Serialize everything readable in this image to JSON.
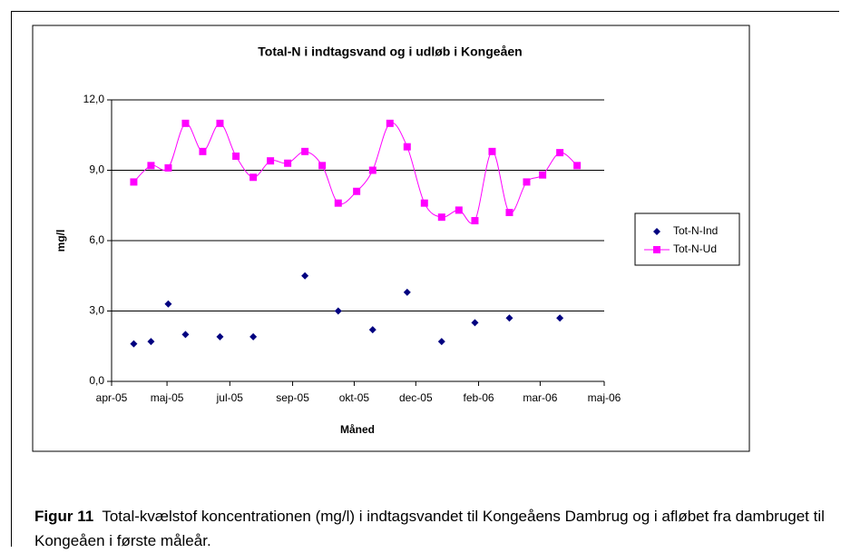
{
  "chart_data": {
    "type": "scatter-line",
    "title": "Total-N i indtagsvand og i udløb i Kongeåen",
    "xlabel": "Måned",
    "ylabel": "mg/l",
    "xlim": [
      0,
      400
    ],
    "xticks": [
      {
        "value": 0,
        "label": "apr-05"
      },
      {
        "value": 45,
        "label": "maj-05"
      },
      {
        "value": 96,
        "label": "jul-05"
      },
      {
        "value": 147,
        "label": "sep-05"
      },
      {
        "value": 197,
        "label": "okt-05"
      },
      {
        "value": 247,
        "label": "dec-05"
      },
      {
        "value": 298,
        "label": "feb-06"
      },
      {
        "value": 348,
        "label": "mar-06"
      },
      {
        "value": 400,
        "label": "maj-06"
      }
    ],
    "ylim": [
      0,
      12
    ],
    "yticks": [
      {
        "value": 0,
        "label": "0,0"
      },
      {
        "value": 3,
        "label": "3,0"
      },
      {
        "value": 6,
        "label": "6,0"
      },
      {
        "value": 9,
        "label": "9,0"
      },
      {
        "value": 12,
        "label": "12,0"
      }
    ],
    "grid": true,
    "legend": "right",
    "series": [
      {
        "name": "Tot-N-Ind",
        "color": "#000080",
        "marker": "diamond",
        "line": false,
        "x": [
          18,
          32,
          46,
          60,
          88,
          115,
          157,
          184,
          212,
          240,
          268,
          295,
          323,
          364
        ],
        "values": [
          1.6,
          1.7,
          3.3,
          2.0,
          1.9,
          1.9,
          4.5,
          3.0,
          2.2,
          3.8,
          1.7,
          2.5,
          2.7,
          2.7
        ]
      },
      {
        "name": "Tot-N-Ud",
        "color": "#ff00ff",
        "marker": "square",
        "line": true,
        "x": [
          18,
          32,
          46,
          60,
          74,
          88,
          101,
          115,
          129,
          143,
          157,
          171,
          184,
          199,
          212,
          226,
          240,
          254,
          268,
          282,
          295,
          309,
          323,
          337,
          350,
          364,
          378
        ],
        "values": [
          8.5,
          9.2,
          9.1,
          11.0,
          9.8,
          11.0,
          9.6,
          8.7,
          9.4,
          9.3,
          9.8,
          9.2,
          7.6,
          8.1,
          9.0,
          11.0,
          10.0,
          7.6,
          7.0,
          7.3,
          6.85,
          9.8,
          7.2,
          8.5,
          8.8,
          9.75,
          9.2
        ]
      }
    ]
  },
  "caption": {
    "label": "Figur 11",
    "text": "Total-kvælstof koncentrationen (mg/l) i indtagsvandet til Kongeåens Dambrug og i afløbet fra  dambruget til Kongeåen i første måleår."
  }
}
